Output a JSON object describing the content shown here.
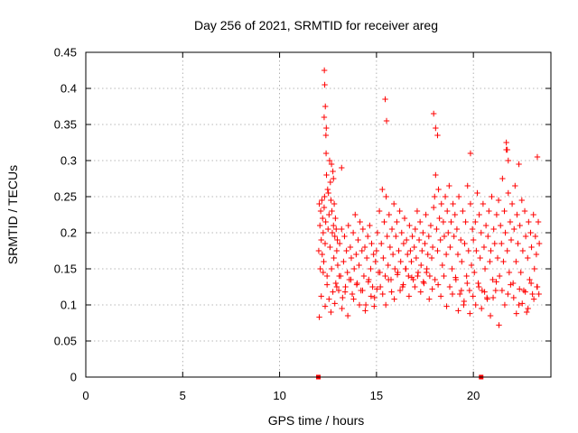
{
  "chart_data": {
    "type": "scatter",
    "title": "Day 256 of 2021, SRMTID for receiver areg",
    "xlabel": "GPS time / hours",
    "ylabel": "SRMTID / TECUs",
    "xlim": [
      0,
      24
    ],
    "ylim": [
      0,
      0.45
    ],
    "x_ticks": [
      0,
      5,
      10,
      15,
      20
    ],
    "x_tick_labels": [
      "0",
      "5",
      "10",
      "15",
      "20"
    ],
    "y_ticks": [
      0,
      0.05,
      0.1,
      0.15,
      0.2,
      0.25,
      0.3,
      0.35,
      0.4,
      0.45
    ],
    "y_tick_labels": [
      "0",
      "0.05",
      "0.1",
      "0.15",
      "0.2",
      "0.25",
      "0.3",
      "0.35",
      "0.4",
      "0.45"
    ],
    "grid": true,
    "marker": "plus",
    "color": "#ff0000",
    "baseline_markers": {
      "marker": "square",
      "y": 0,
      "x": [
        12.0,
        20.4
      ]
    },
    "series": [
      {
        "name": "SRMTID",
        "x": [
          12.02,
          12.05,
          12.08,
          12.1,
          12.12,
          12.15,
          12.18,
          12.2,
          12.22,
          12.25,
          12.28,
          12.3,
          12.32,
          12.35,
          12.38,
          12.4,
          12.42,
          12.45,
          12.48,
          12.5,
          12.52,
          12.55,
          12.58,
          12.6,
          12.62,
          12.65,
          12.68,
          12.7,
          12.72,
          12.75,
          12.78,
          12.8,
          12.82,
          12.85,
          12.88,
          12.9,
          12.92,
          12.95,
          12.98,
          13.0,
          13.05,
          13.1,
          13.15,
          13.2,
          13.25,
          13.3,
          13.35,
          13.4,
          13.45,
          13.5,
          13.55,
          13.6,
          13.65,
          13.7,
          13.75,
          13.8,
          13.85,
          13.9,
          13.95,
          14.0,
          14.05,
          14.1,
          14.15,
          14.2,
          14.25,
          14.3,
          14.35,
          14.4,
          14.45,
          14.5,
          14.55,
          14.6,
          14.65,
          14.7,
          14.75,
          14.8,
          14.85,
          14.9,
          14.95,
          15.0,
          15.05,
          15.1,
          15.15,
          15.2,
          15.25,
          15.3,
          15.35,
          15.4,
          15.45,
          15.5,
          15.55,
          15.6,
          15.65,
          15.7,
          15.75,
          15.8,
          15.85,
          15.9,
          15.95,
          16.0,
          16.05,
          16.1,
          16.15,
          16.2,
          16.25,
          16.3,
          16.35,
          16.4,
          16.45,
          16.5,
          16.55,
          16.6,
          16.65,
          16.7,
          16.75,
          16.8,
          16.85,
          16.9,
          16.95,
          17.0,
          17.05,
          17.1,
          17.15,
          17.2,
          17.25,
          17.3,
          17.35,
          17.4,
          17.45,
          17.5,
          17.55,
          17.6,
          17.65,
          17.7,
          17.75,
          17.8,
          17.85,
          17.9,
          17.95,
          18.0,
          18.05,
          18.1,
          18.15,
          18.2,
          18.25,
          18.3,
          18.35,
          18.4,
          18.45,
          18.5,
          18.55,
          18.6,
          18.65,
          18.7,
          18.75,
          18.8,
          18.85,
          18.9,
          18.95,
          19.0,
          19.05,
          19.1,
          19.15,
          19.2,
          19.25,
          19.3,
          19.35,
          19.4,
          19.45,
          19.5,
          19.55,
          19.6,
          19.65,
          19.7,
          19.75,
          19.8,
          19.85,
          19.9,
          19.95,
          20.0,
          20.05,
          20.1,
          20.15,
          20.2,
          20.25,
          20.3,
          20.35,
          20.4,
          20.45,
          20.5,
          20.55,
          20.6,
          20.65,
          20.7,
          20.75,
          20.8,
          20.85,
          20.9,
          20.95,
          21.0,
          21.05,
          21.1,
          21.15,
          21.2,
          21.25,
          21.3,
          21.35,
          21.4,
          21.45,
          21.5,
          21.55,
          21.6,
          21.65,
          21.7,
          21.75,
          21.8,
          21.85,
          21.9,
          21.95,
          22.0,
          22.05,
          22.1,
          22.15,
          22.2,
          22.25,
          22.3,
          22.35,
          22.4,
          22.45,
          22.5,
          22.55,
          22.6,
          22.65,
          22.7,
          22.75,
          22.8,
          22.85,
          22.9,
          22.95,
          23.0,
          23.05,
          23.1,
          23.15,
          23.2,
          23.25,
          23.3,
          23.35,
          23.4,
          12.05,
          12.15,
          12.25,
          12.35,
          12.45,
          12.55,
          12.65,
          12.75,
          12.85,
          12.95,
          13.08,
          13.22,
          13.38,
          13.52,
          13.68,
          13.82,
          13.98,
          14.12,
          14.28,
          14.42,
          14.58,
          14.72,
          14.88,
          15.02,
          15.18,
          15.32,
          15.48,
          15.62,
          15.78,
          15.92,
          16.08,
          16.22,
          16.38,
          16.52,
          16.68,
          16.82,
          16.98,
          17.12,
          17.28,
          17.42,
          17.58,
          17.72,
          17.88,
          18.02,
          18.18,
          18.32,
          18.48,
          18.62,
          18.78,
          18.92,
          19.08,
          19.22,
          19.38,
          19.52,
          19.68,
          19.82,
          19.98,
          20.12,
          20.28,
          20.42,
          20.58,
          20.72,
          20.88,
          21.02,
          21.18,
          21.32,
          21.48,
          21.62,
          21.78,
          21.92,
          22.08,
          22.22,
          22.38,
          22.52,
          22.68,
          22.82,
          22.98,
          23.12,
          23.28,
          23.38,
          12.3,
          12.31,
          12.33,
          12.36,
          12.39,
          12.41,
          13.2,
          15.45,
          15.52,
          17.95,
          18.05,
          18.15,
          19.85,
          21.7,
          21.75,
          21.8,
          22.35,
          23.3,
          12.68,
          12.78
        ],
        "y": [
          0.175,
          0.24,
          0.21,
          0.15,
          0.23,
          0.19,
          0.245,
          0.17,
          0.22,
          0.2,
          0.16,
          0.235,
          0.25,
          0.185,
          0.215,
          0.31,
          0.28,
          0.14,
          0.26,
          0.205,
          0.255,
          0.225,
          0.3,
          0.18,
          0.27,
          0.245,
          0.15,
          0.23,
          0.2,
          0.285,
          0.21,
          0.165,
          0.24,
          0.195,
          0.22,
          0.13,
          0.205,
          0.175,
          0.19,
          0.155,
          0.12,
          0.185,
          0.14,
          0.205,
          0.11,
          0.16,
          0.195,
          0.125,
          0.175,
          0.145,
          0.21,
          0.135,
          0.18,
          0.165,
          0.115,
          0.2,
          0.15,
          0.225,
          0.17,
          0.13,
          0.19,
          0.155,
          0.215,
          0.12,
          0.175,
          0.205,
          0.14,
          0.18,
          0.1,
          0.165,
          0.195,
          0.135,
          0.21,
          0.15,
          0.185,
          0.125,
          0.17,
          0.11,
          0.16,
          0.175,
          0.2,
          0.145,
          0.23,
          0.125,
          0.185,
          0.26,
          0.165,
          0.215,
          0.14,
          0.25,
          0.195,
          0.155,
          0.225,
          0.18,
          0.135,
          0.205,
          0.17,
          0.24,
          0.15,
          0.195,
          0.215,
          0.145,
          0.175,
          0.23,
          0.16,
          0.2,
          0.125,
          0.185,
          0.22,
          0.15,
          0.19,
          0.17,
          0.14,
          0.21,
          0.175,
          0.16,
          0.195,
          0.135,
          0.18,
          0.205,
          0.165,
          0.23,
          0.145,
          0.19,
          0.215,
          0.155,
          0.175,
          0.2,
          0.13,
          0.185,
          0.225,
          0.15,
          0.17,
          0.195,
          0.14,
          0.21,
          0.165,
          0.18,
          0.235,
          0.25,
          0.28,
          0.205,
          0.175,
          0.26,
          0.22,
          0.19,
          0.24,
          0.155,
          0.215,
          0.195,
          0.25,
          0.17,
          0.23,
          0.2,
          0.265,
          0.18,
          0.215,
          0.15,
          0.24,
          0.195,
          0.225,
          0.135,
          0.205,
          0.17,
          0.25,
          0.115,
          0.19,
          0.16,
          0.23,
          0.1,
          0.185,
          0.215,
          0.14,
          0.265,
          0.175,
          0.12,
          0.24,
          0.155,
          0.205,
          0.19,
          0.145,
          0.215,
          0.175,
          0.255,
          0.13,
          0.225,
          0.165,
          0.2,
          0.12,
          0.24,
          0.18,
          0.15,
          0.21,
          0.11,
          0.195,
          0.23,
          0.16,
          0.175,
          0.25,
          0.135,
          0.205,
          0.185,
          0.12,
          0.225,
          0.165,
          0.245,
          0.14,
          0.21,
          0.185,
          0.275,
          0.16,
          0.23,
          0.2,
          0.315,
          0.175,
          0.255,
          0.145,
          0.215,
          0.19,
          0.24,
          0.13,
          0.205,
          0.265,
          0.16,
          0.225,
          0.185,
          0.1,
          0.21,
          0.145,
          0.245,
          0.175,
          0.12,
          0.23,
          0.195,
          0.09,
          0.165,
          0.215,
          0.135,
          0.2,
          0.18,
          0.115,
          0.225,
          0.15,
          0.195,
          0.17,
          0.125,
          0.215,
          0.185,
          0.083,
          0.112,
          0.145,
          0.098,
          0.128,
          0.108,
          0.09,
          0.118,
          0.102,
          0.125,
          0.14,
          0.095,
          0.118,
          0.085,
          0.135,
          0.108,
          0.128,
          0.1,
          0.12,
          0.092,
          0.132,
          0.112,
          0.098,
          0.122,
          0.145,
          0.115,
          0.1,
          0.135,
          0.118,
          0.108,
          0.142,
          0.12,
          0.128,
          0.15,
          0.112,
          0.138,
          0.125,
          0.14,
          0.118,
          0.132,
          0.145,
          0.108,
          0.122,
          0.135,
          0.128,
          0.112,
          0.14,
          0.098,
          0.125,
          0.115,
          0.138,
          0.092,
          0.12,
          0.105,
          0.13,
          0.088,
          0.112,
          0.1,
          0.125,
          0.095,
          0.118,
          0.108,
          0.085,
          0.11,
          0.132,
          0.072,
          0.12,
          0.1,
          0.115,
          0.128,
          0.11,
          0.088,
          0.122,
          0.102,
          0.118,
          0.095,
          0.13,
          0.108,
          0.125,
          0.115,
          0.36,
          0.425,
          0.405,
          0.375,
          0.335,
          0.345,
          0.29,
          0.385,
          0.355,
          0.365,
          0.345,
          0.335,
          0.31,
          0.325,
          0.315,
          0.3,
          0.295,
          0.305,
          0.295,
          0.275
        ]
      }
    ]
  }
}
